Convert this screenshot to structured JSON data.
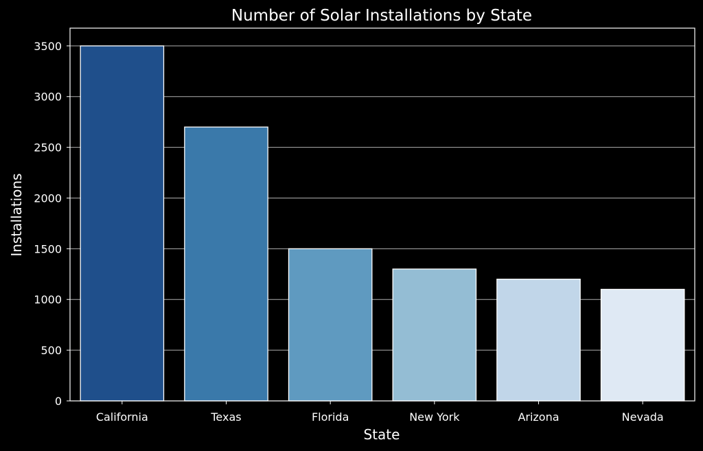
{
  "chart_data": {
    "type": "bar",
    "title": "Number of Solar Installations by State",
    "xlabel": "State",
    "ylabel": "Installations",
    "categories": [
      "California",
      "Texas",
      "Florida",
      "New York",
      "Arizona",
      "Nevada"
    ],
    "values": [
      3500,
      2700,
      1500,
      1300,
      1200,
      1100
    ],
    "ylim": [
      0,
      3675
    ],
    "yticks": [
      0,
      500,
      1000,
      1500,
      2000,
      2500,
      3000,
      3500
    ],
    "ytick_labels": [
      "0",
      "500",
      "1000",
      "1500",
      "2000",
      "2500",
      "3000",
      "3500"
    ],
    "grid": "horizontal",
    "colors": [
      "#1f4f8b",
      "#3a79aa",
      "#5f9ac0",
      "#94bdd4",
      "#c1d6e9",
      "#dfe9f4"
    ],
    "background": "#000000",
    "edge_color": "#ffffff",
    "grid_color": "#b0b0b0"
  }
}
